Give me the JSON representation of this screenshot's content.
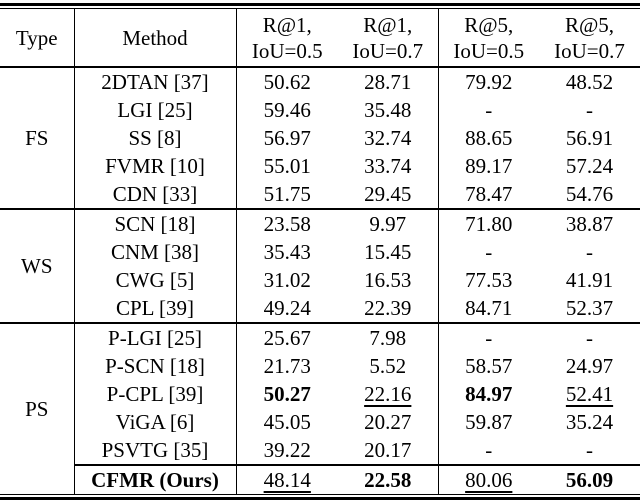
{
  "table": {
    "headers": {
      "type": "Type",
      "method": "Method",
      "cols": [
        {
          "line1": "R@1,",
          "line2": "IoU=0.5"
        },
        {
          "line1": "R@1,",
          "line2": "IoU=0.7"
        },
        {
          "line1": "R@5,",
          "line2": "IoU=0.5"
        },
        {
          "line1": "R@5,",
          "line2": "IoU=0.7"
        }
      ]
    },
    "groups": [
      {
        "type": "FS",
        "rows": [
          {
            "method": "2DTAN [37]",
            "values": [
              "50.62",
              "28.71",
              "79.92",
              "48.52"
            ]
          },
          {
            "method": "LGI [25]",
            "values": [
              "59.46",
              "35.48",
              "-",
              "-"
            ]
          },
          {
            "method": "SS [8]",
            "values": [
              "56.97",
              "32.74",
              "88.65",
              "56.91"
            ]
          },
          {
            "method": "FVMR [10]",
            "values": [
              "55.01",
              "33.74",
              "89.17",
              "57.24"
            ]
          },
          {
            "method": "CDN [33]",
            "values": [
              "51.75",
              "29.45",
              "78.47",
              "54.76"
            ]
          }
        ]
      },
      {
        "type": "WS",
        "rows": [
          {
            "method": "SCN [18]",
            "values": [
              "23.58",
              "9.97",
              "71.80",
              "38.87"
            ]
          },
          {
            "method": "CNM [38]",
            "values": [
              "35.43",
              "15.45",
              "-",
              "-"
            ]
          },
          {
            "method": "CWG [5]",
            "values": [
              "31.02",
              "16.53",
              "77.53",
              "41.91"
            ]
          },
          {
            "method": "CPL [39]",
            "values": [
              "49.24",
              "22.39",
              "84.71",
              "52.37"
            ]
          }
        ]
      },
      {
        "type": "PS",
        "rows": [
          {
            "method": "P-LGI [25]",
            "values": [
              "25.67",
              "7.98",
              "-",
              "-"
            ]
          },
          {
            "method": "P-SCN [18]",
            "values": [
              "21.73",
              "5.52",
              "58.57",
              "24.97"
            ]
          },
          {
            "method": "P-CPL [39]",
            "values": [
              "50.27",
              "22.16",
              "84.97",
              "52.41"
            ],
            "styles": [
              "bold",
              "underline",
              "bold",
              "underline"
            ]
          },
          {
            "method": "ViGA [6]",
            "values": [
              "45.05",
              "20.27",
              "59.87",
              "35.24"
            ]
          },
          {
            "method": "PSVTG [35]",
            "values": [
              "39.22",
              "20.17",
              "-",
              "-"
            ]
          },
          {
            "method": "CFMR (Ours)",
            "method_style": "bold",
            "values": [
              "48.14",
              "22.58",
              "80.06",
              "56.09"
            ],
            "styles": [
              "underline",
              "bold",
              "underline",
              "bold"
            ],
            "separator_above": true
          }
        ]
      }
    ]
  }
}
